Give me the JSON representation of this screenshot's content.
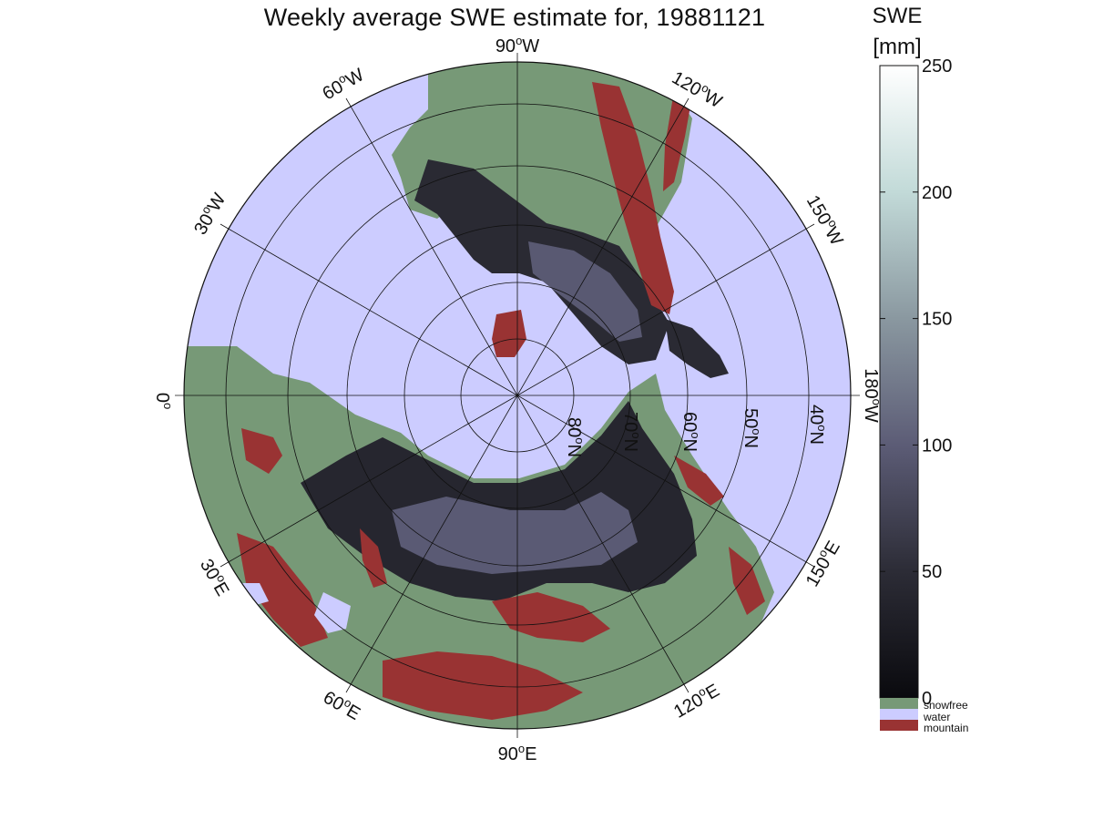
{
  "title": "Weekly average SWE estimate for, 19881121",
  "map": {
    "projection": "north polar stereographic",
    "background_color": "#ccccff",
    "land_colors": {
      "snowfree": "#779977",
      "water": "#ccccff",
      "mountain": "#993333",
      "low_swe": "#232329",
      "mid_swe": "#5c5c76"
    },
    "longitude_labels": [
      {
        "deg": "90",
        "dir": "W"
      },
      {
        "deg": "120",
        "dir": "W"
      },
      {
        "deg": "150",
        "dir": "W"
      },
      {
        "deg": "180",
        "dir": "W"
      },
      {
        "deg": "150",
        "dir": "E"
      },
      {
        "deg": "120",
        "dir": "E"
      },
      {
        "deg": "90",
        "dir": "E"
      },
      {
        "deg": "60",
        "dir": "E"
      },
      {
        "deg": "30",
        "dir": "E"
      },
      {
        "deg": "0",
        "dir": ""
      },
      {
        "deg": "30",
        "dir": "W"
      },
      {
        "deg": "60",
        "dir": "W"
      }
    ],
    "latitude_labels": [
      {
        "deg": "80",
        "dir": "N"
      },
      {
        "deg": "70",
        "dir": "N"
      },
      {
        "deg": "60",
        "dir": "N"
      },
      {
        "deg": "50",
        "dir": "N"
      },
      {
        "deg": "40",
        "dir": "N"
      }
    ],
    "graticule": {
      "meridian_step_deg": 30,
      "parallels_deg": [
        80,
        70,
        60,
        50,
        40
      ]
    }
  },
  "colorbar": {
    "title_line1": "SWE",
    "title_line2": "[mm]",
    "ticks": [
      "0",
      "50",
      "100",
      "150",
      "200",
      "250"
    ],
    "range": [
      0,
      250
    ],
    "gradient_stops": [
      "#0a0a0e",
      "#2c2c36",
      "#5c5c76",
      "#8a98a0",
      "#c2dad8",
      "#ffffff"
    ],
    "categories": [
      {
        "label": "snowfree",
        "color": "#779977"
      },
      {
        "label": "water",
        "color": "#ccccff"
      },
      {
        "label": "mountain",
        "color": "#993333"
      }
    ]
  }
}
